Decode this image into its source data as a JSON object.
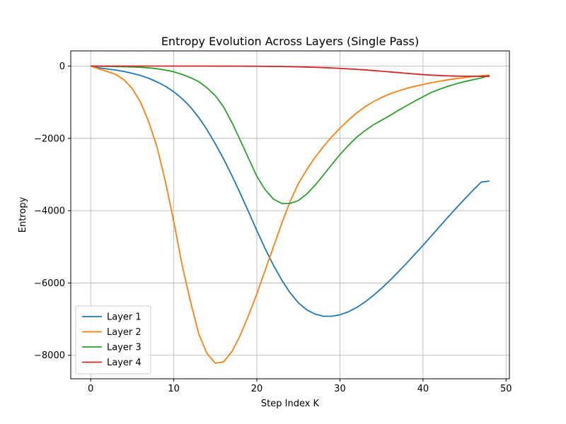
{
  "chart_data": {
    "type": "line",
    "title": "Entropy Evolution Across Layers (Single Pass)",
    "xlabel": "Step Index K",
    "ylabel": "Entropy",
    "xlim": [
      -2.4,
      50.4
    ],
    "ylim": [
      -8650,
      420
    ],
    "xticks": [
      0,
      10,
      20,
      30,
      40,
      50
    ],
    "xtick_labels": [
      "0",
      "10",
      "20",
      "30",
      "40",
      "50"
    ],
    "yticks": [
      0,
      -2000,
      -4000,
      -6000,
      -8000
    ],
    "ytick_labels": [
      "0",
      "−2000",
      "−4000",
      "−6000",
      "−8000"
    ],
    "grid": true,
    "legend_position": "lower-left",
    "x": [
      0,
      1,
      2,
      3,
      4,
      5,
      6,
      7,
      8,
      9,
      10,
      11,
      12,
      13,
      14,
      15,
      16,
      17,
      18,
      19,
      20,
      21,
      22,
      23,
      24,
      25,
      26,
      27,
      28,
      29,
      30,
      31,
      32,
      33,
      34,
      35,
      36,
      37,
      38,
      39,
      40,
      41,
      42,
      43,
      44,
      45,
      46,
      47,
      48
    ],
    "series": [
      {
        "name": "Layer 1",
        "color": "#1f77b4",
        "values": [
          0,
          -50,
          -80,
          -110,
          -150,
          -200,
          -260,
          -340,
          -440,
          -560,
          -710,
          -900,
          -1130,
          -1420,
          -1760,
          -2150,
          -2570,
          -3030,
          -3520,
          -4030,
          -4550,
          -5050,
          -5510,
          -5920,
          -6270,
          -6550,
          -6740,
          -6860,
          -6920,
          -6920,
          -6880,
          -6800,
          -6680,
          -6530,
          -6350,
          -6150,
          -5930,
          -5700,
          -5460,
          -5210,
          -4960,
          -4700,
          -4440,
          -4180,
          -3930,
          -3680,
          -3440,
          -3210,
          -3180
        ]
      },
      {
        "name": "Layer 2",
        "color": "#ff7f0e",
        "values": [
          0,
          -80,
          -150,
          -230,
          -380,
          -620,
          -1000,
          -1550,
          -2250,
          -3200,
          -4300,
          -5500,
          -6500,
          -7400,
          -7950,
          -8220,
          -8180,
          -7900,
          -7450,
          -6900,
          -6300,
          -5650,
          -5000,
          -4350,
          -3750,
          -3250,
          -2870,
          -2530,
          -2230,
          -1960,
          -1720,
          -1500,
          -1300,
          -1130,
          -990,
          -870,
          -770,
          -690,
          -620,
          -560,
          -510,
          -460,
          -420,
          -380,
          -350,
          -320,
          -290,
          -270,
          -250
        ]
      },
      {
        "name": "Layer 3",
        "color": "#2ca02c",
        "values": [
          0,
          -5,
          -10,
          -15,
          -20,
          -25,
          -35,
          -50,
          -75,
          -110,
          -160,
          -230,
          -320,
          -430,
          -600,
          -820,
          -1130,
          -1560,
          -2050,
          -2550,
          -3050,
          -3420,
          -3680,
          -3800,
          -3800,
          -3720,
          -3540,
          -3300,
          -3020,
          -2730,
          -2450,
          -2200,
          -1970,
          -1790,
          -1630,
          -1500,
          -1370,
          -1230,
          -1100,
          -970,
          -850,
          -730,
          -640,
          -560,
          -490,
          -430,
          -380,
          -330,
          -260
        ]
      },
      {
        "name": "Layer 4",
        "color": "#d62728",
        "values": [
          0,
          0,
          0,
          0,
          0,
          0,
          0,
          0,
          0,
          0,
          0,
          0,
          0,
          0,
          0,
          -1,
          -1,
          -2,
          -3,
          -4,
          -5,
          -7,
          -10,
          -13,
          -17,
          -22,
          -28,
          -35,
          -43,
          -53,
          -64,
          -77,
          -91,
          -107,
          -124,
          -142,
          -161,
          -180,
          -200,
          -219,
          -236,
          -251,
          -263,
          -272,
          -278,
          -282,
          -284,
          -285,
          -285
        ]
      }
    ]
  }
}
